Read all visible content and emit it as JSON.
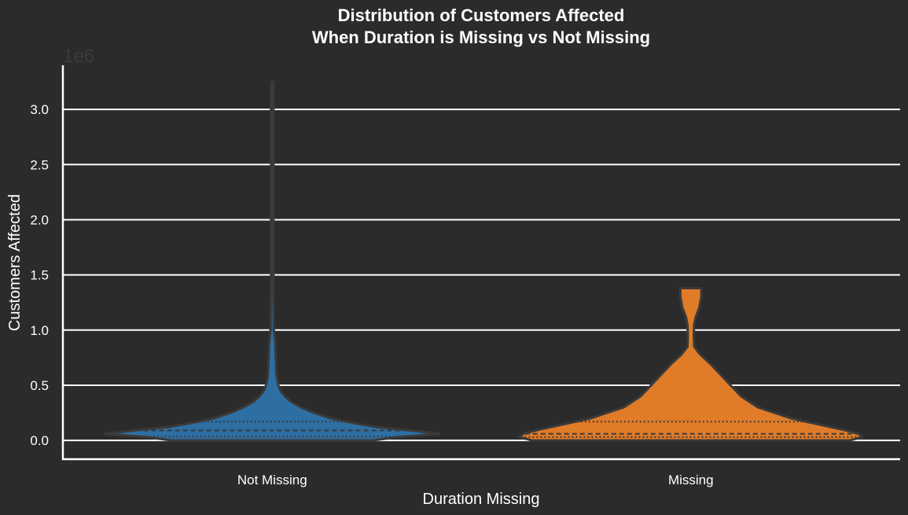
{
  "chart_data": {
    "type": "violin",
    "title_lines": [
      "Distribution of Customers Affected",
      "When Duration is Missing vs Not Missing"
    ],
    "xlabel": "Duration Missing",
    "ylabel": "Customers Affected",
    "y_offset_label": "1e6",
    "ylim": [
      -0.17,
      3.4
    ],
    "y_ticks": [
      0.0,
      0.5,
      1.0,
      1.5,
      2.0,
      2.5,
      3.0
    ],
    "y_tick_labels": [
      "0.0",
      "0.5",
      "1.0",
      "1.5",
      "2.0",
      "2.5",
      "3.0"
    ],
    "grid": true,
    "categories": [
      "Not Missing",
      "Missing"
    ],
    "colors": [
      "#2e6fa3",
      "#e07b28"
    ],
    "edge_color": "#3a3a3a",
    "violins": [
      {
        "category": "Not Missing",
        "profile_y": [
          0.0,
          0.03,
          0.06,
          0.09,
          0.12,
          0.16,
          0.2,
          0.25,
          0.3,
          0.35,
          0.4,
          0.45,
          0.5,
          0.55,
          0.6,
          0.7,
          0.8,
          0.9,
          1.0,
          1.3,
          1.7,
          2.2,
          2.7,
          3.0,
          3.25
        ],
        "profile_halfwidth": [
          0.24,
          0.3,
          0.4,
          0.33,
          0.25,
          0.19,
          0.14,
          0.1,
          0.068,
          0.045,
          0.03,
          0.02,
          0.015,
          0.012,
          0.01,
          0.009,
          0.008,
          0.007,
          0.004,
          0.003,
          0.003,
          0.003,
          0.003,
          0.003,
          0.002
        ],
        "quartiles": [
          0.035,
          0.09,
          0.17
        ]
      },
      {
        "category": "Missing",
        "profile_y": [
          0.0,
          0.03,
          0.06,
          0.1,
          0.15,
          0.2,
          0.3,
          0.4,
          0.5,
          0.6,
          0.7,
          0.78,
          0.85,
          0.95,
          1.05,
          1.12,
          1.2,
          1.3,
          1.38
        ],
        "profile_halfwidth": [
          0.38,
          0.41,
          0.4,
          0.36,
          0.3,
          0.24,
          0.16,
          0.12,
          0.095,
          0.07,
          0.045,
          0.022,
          0.008,
          0.007,
          0.008,
          0.012,
          0.02,
          0.025,
          0.025
        ],
        "quartiles": [
          0.03,
          0.06,
          0.17
        ]
      }
    ]
  }
}
